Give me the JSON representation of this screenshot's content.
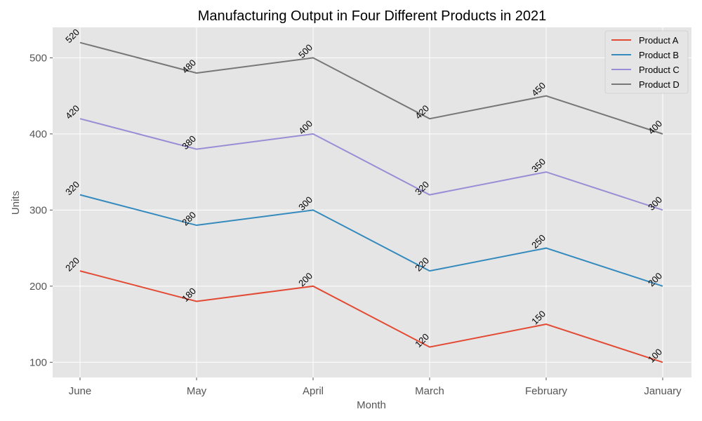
{
  "chart_data": {
    "type": "line",
    "title": "Manufacturing Output in Four Different Products in 2021",
    "xlabel": "Month",
    "ylabel": "Units",
    "categories": [
      "June",
      "May",
      "April",
      "March",
      "February",
      "January"
    ],
    "y_ticks": [
      100,
      200,
      300,
      400,
      500
    ],
    "ylim": [
      80,
      540
    ],
    "grid": true,
    "legend_position": "top-right",
    "series": [
      {
        "name": "Product A",
        "color": "#E24A33",
        "values": [
          220,
          180,
          200,
          120,
          150,
          100
        ]
      },
      {
        "name": "Product B",
        "color": "#348ABD",
        "values": [
          320,
          280,
          300,
          220,
          250,
          200
        ]
      },
      {
        "name": "Product C",
        "color": "#988ED5",
        "values": [
          420,
          380,
          400,
          320,
          350,
          300
        ]
      },
      {
        "name": "Product D",
        "color": "#777777",
        "values": [
          520,
          480,
          500,
          420,
          450,
          400
        ]
      }
    ]
  }
}
